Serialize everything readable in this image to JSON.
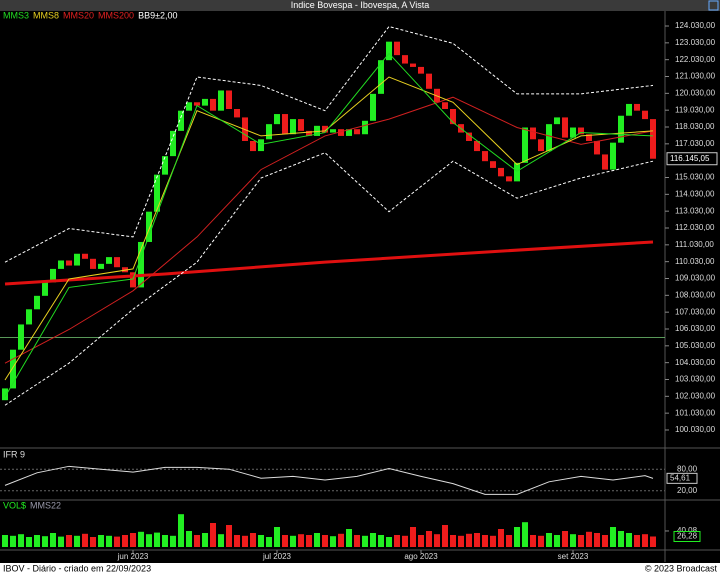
{
  "chart_data": {
    "type": "candlestick",
    "title": "Indice Bovespa - Ibovespa, A Vista",
    "legend": [
      {
        "name": "MMS3",
        "color": "#22dd22"
      },
      {
        "name": "MMS8",
        "color": "#e8d020"
      },
      {
        "name": "MMS20",
        "color": "#e02020"
      },
      {
        "name": "MMS200",
        "color": "#e02020"
      },
      {
        "name": "BB9±2,00",
        "color": "#ffffff"
      }
    ],
    "open": [
      101800,
      102500,
      104800,
      106300,
      107200,
      108000,
      108800,
      109600,
      110100,
      109800,
      110500,
      110200,
      109600,
      109900,
      110300,
      109700,
      109400,
      108500,
      111200,
      113000,
      115200,
      116300,
      117800,
      119000,
      119500,
      119300,
      119700,
      119000,
      120200,
      119100,
      118600,
      117200,
      116600,
      117300,
      118200,
      118800,
      117600,
      118500,
      117800,
      117500,
      118100,
      117700,
      117900,
      117500,
      117900,
      117600,
      118400,
      120000,
      122000,
      123100,
      122300,
      121800,
      121600,
      121200,
      120300,
      119500,
      119100,
      118200,
      117700,
      117200,
      116600,
      116000,
      115600,
      115100,
      114800,
      115900,
      118000,
      117300,
      116600,
      118200,
      118600,
      117400,
      118000,
      117600,
      117200,
      116400,
      115500,
      117100,
      118700,
      119400,
      119000,
      118500
    ],
    "close": [
      102500,
      104800,
      106300,
      107200,
      108000,
      108800,
      109600,
      110100,
      109800,
      110500,
      110200,
      109600,
      109900,
      110300,
      109700,
      109400,
      108500,
      111200,
      113000,
      115200,
      116300,
      117800,
      119000,
      119500,
      119300,
      119700,
      119000,
      120200,
      119100,
      118600,
      117200,
      116600,
      117300,
      118200,
      118800,
      117600,
      118500,
      117800,
      117500,
      118100,
      117700,
      117900,
      117500,
      117900,
      117600,
      118400,
      120000,
      122000,
      123100,
      122300,
      121800,
      121600,
      121200,
      120300,
      119500,
      119100,
      118200,
      117700,
      117200,
      116600,
      116000,
      115600,
      115100,
      114800,
      115900,
      118000,
      117300,
      116600,
      118200,
      118600,
      117400,
      118000,
      117600,
      117200,
      116400,
      115500,
      117100,
      118700,
      119400,
      119000,
      118500,
      116145
    ],
    "up_color": "#22ee22",
    "down_color": "#ee1c1c",
    "lines": [
      {
        "name": "MMS200",
        "color": "#e01010",
        "width": 3,
        "x": [
          0,
          20,
          40,
          60,
          81
        ],
        "values": [
          108700,
          109300,
          110000,
          110600,
          111200
        ]
      },
      {
        "name": "MMS20",
        "color": "#d02020",
        "width": 1,
        "x": [
          0,
          8,
          16,
          24,
          32,
          40,
          48,
          56,
          64,
          72,
          81
        ],
        "values": [
          104000,
          106000,
          108300,
          111500,
          115500,
          117500,
          118500,
          119800,
          118000,
          117000,
          117800
        ]
      },
      {
        "name": "MMS8",
        "color": "#e8d020",
        "width": 1,
        "x": [
          0,
          8,
          16,
          24,
          32,
          40,
          48,
          56,
          64,
          72,
          81
        ],
        "values": [
          103000,
          109000,
          109600,
          119000,
          117500,
          117800,
          121000,
          119500,
          115800,
          117500,
          117800
        ]
      },
      {
        "name": "MMS3",
        "color": "#22dd22",
        "width": 1,
        "x": [
          0,
          8,
          16,
          24,
          32,
          40,
          48,
          56,
          64,
          72,
          81
        ],
        "values": [
          102000,
          108500,
          109000,
          119300,
          117000,
          117700,
          122400,
          118300,
          115400,
          117700,
          117500
        ]
      },
      {
        "name": "BB+",
        "color": "#ffffff",
        "width": 1,
        "dash": true,
        "x": [
          0,
          8,
          16,
          24,
          32,
          40,
          48,
          56,
          64,
          72,
          81
        ],
        "values": [
          110000,
          112000,
          111500,
          121000,
          120500,
          119000,
          124000,
          123000,
          120000,
          120000,
          120500
        ]
      },
      {
        "name": "BB-",
        "color": "#ffffff",
        "width": 1,
        "dash": true,
        "x": [
          0,
          8,
          16,
          24,
          32,
          40,
          48,
          56,
          64,
          72,
          81
        ],
        "values": [
          101500,
          104000,
          107200,
          110000,
          115000,
          116500,
          113000,
          116000,
          113800,
          115000,
          116000
        ]
      }
    ],
    "reference_line": 105530,
    "ylim": [
      99530,
      124530
    ],
    "yticks": [
      {
        "value": 124030,
        "label": "124.030,00"
      },
      {
        "value": 123030,
        "label": "123.030,00"
      },
      {
        "value": 122030,
        "label": "122.030,00"
      },
      {
        "value": 121030,
        "label": "121.030,00"
      },
      {
        "value": 120030,
        "label": "120.030,00"
      },
      {
        "value": 119030,
        "label": "119.030,00"
      },
      {
        "value": 118030,
        "label": "118.030,00"
      },
      {
        "value": 117030,
        "label": "117.030,00"
      },
      {
        "value": 115030,
        "label": "115.030,00"
      },
      {
        "value": 114030,
        "label": "114.030,00"
      },
      {
        "value": 113030,
        "label": "113.030,00"
      },
      {
        "value": 112030,
        "label": "112.030,00"
      },
      {
        "value": 111030,
        "label": "111.030,00"
      },
      {
        "value": 110030,
        "label": "110.030,00"
      },
      {
        "value": 109030,
        "label": "109.030,00"
      },
      {
        "value": 108030,
        "label": "108.030,00"
      },
      {
        "value": 107030,
        "label": "107.030,00"
      },
      {
        "value": 106030,
        "label": "106.030,00"
      },
      {
        "value": 105030,
        "label": "105.030,00"
      },
      {
        "value": 104030,
        "label": "104.030,00"
      },
      {
        "value": 103030,
        "label": "103.030,00"
      },
      {
        "value": 102030,
        "label": "102.030,00"
      },
      {
        "value": 101030,
        "label": "101.030,00"
      },
      {
        "value": 100030,
        "label": "100.030,00"
      }
    ],
    "last": {
      "value": 116145.05,
      "label": "116.145,05"
    },
    "xticks": [
      {
        "value": 16,
        "label": "jun 2023"
      },
      {
        "value": 34,
        "label": "jul 2023"
      },
      {
        "value": 52,
        "label": "ago 2023"
      },
      {
        "value": 71,
        "label": "set 2023"
      }
    ],
    "rsi": {
      "title": "IFR 9",
      "ylim": [
        0,
        100
      ],
      "yticks": [
        {
          "value": 80,
          "label": "80,00"
        },
        {
          "value": 20,
          "label": "20,00"
        }
      ],
      "x": [
        0,
        4,
        8,
        12,
        16,
        20,
        24,
        28,
        32,
        36,
        40,
        44,
        48,
        52,
        56,
        60,
        64,
        68,
        72,
        76,
        80,
        81
      ],
      "values": [
        35,
        70,
        88,
        80,
        72,
        85,
        85,
        80,
        55,
        60,
        50,
        60,
        82,
        60,
        40,
        10,
        10,
        45,
        60,
        50,
        62,
        54.61
      ],
      "last": {
        "value": 54.61,
        "label": "54,61"
      }
    },
    "volume": {
      "title": "VOL$",
      "ma_name": "MMS22",
      "ylim": [
        0,
        90
      ],
      "yticks": [
        {
          "value": 40.08,
          "label": "40,08"
        }
      ],
      "values": [
        30,
        28,
        32,
        25,
        30,
        27,
        35,
        26,
        30,
        28,
        33,
        25,
        30,
        28,
        26,
        30,
        35,
        38,
        32,
        36,
        30,
        28,
        82,
        40,
        30,
        35,
        60,
        32,
        55,
        30,
        28,
        35,
        30,
        25,
        50,
        30,
        28,
        32,
        30,
        35,
        30,
        27,
        33,
        45,
        30,
        28,
        35,
        30,
        25,
        30,
        28,
        50,
        30,
        40,
        32,
        55,
        30,
        28,
        33,
        35,
        30,
        28,
        45,
        30,
        50,
        62,
        30,
        28,
        35,
        30,
        40,
        32,
        30,
        38,
        35,
        30,
        50,
        40,
        35,
        30,
        32,
        26.28
      ],
      "last": {
        "value": 26.28,
        "label": "26,28"
      }
    },
    "footer_left": "IBOV - Diário - criado em 22/09/2023",
    "footer_right": "© 2023 Broadcast"
  }
}
